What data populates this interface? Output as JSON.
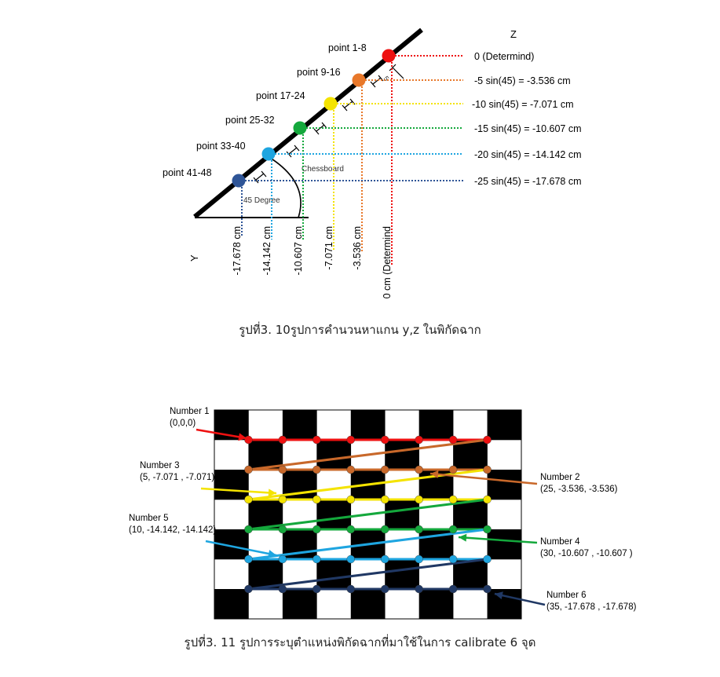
{
  "figure1": {
    "axis_z": "Z",
    "axis_y": "Y",
    "angle_label": "45 Degree",
    "board_label": "Chessboard",
    "tick_label": "5",
    "colors": {
      "red": "#ee1111",
      "orange": "#e8782a",
      "yellow": "#f4e300",
      "green": "#14a83c",
      "cyan": "#1ea5e0",
      "navy": "#2f5597"
    },
    "points": [
      {
        "label": "point 1-8",
        "z": "0 (Determind)",
        "y": "0 cm (Determind",
        "color": "#ee1111"
      },
      {
        "label": "point 9-16",
        "z": "-5 sin(45) = -3.536 cm",
        "y": "-3.536 cm",
        "color": "#e8782a"
      },
      {
        "label": "point 17-24",
        "z": "-10 sin(45) = -7.071 cm",
        "y": "-7.071 cm",
        "color": "#f4e300"
      },
      {
        "label": "point 25-32",
        "z": "-15 sin(45) = -10.607 cm",
        "y": "-10.607 cm",
        "color": "#14a83c"
      },
      {
        "label": "point 33-40",
        "z": "-20 sin(45) = -14.142 cm",
        "y": "-14.142 cm",
        "color": "#1ea5e0"
      },
      {
        "label": "point 41-48",
        "z": "-25 sin(45) = -17.678 cm",
        "y": "-17.678 cm",
        "color": "#2f5597"
      }
    ],
    "caption": "รูปที่3. 10รูปการคำนวนหาแกน y,z ในพิกัดฉาก"
  },
  "figure2": {
    "colors": {
      "row1": "#ee1111",
      "row2": "#c8682a",
      "row3": "#f4e300",
      "row4": "#14a83c",
      "row5": "#1ea5e0",
      "row6": "#203864"
    },
    "labels": [
      {
        "name": "Number 1",
        "coords": "(0,0,0)"
      },
      {
        "name": "Number 2",
        "coords": "(25, -3.536, -3.536)"
      },
      {
        "name": "Number 3",
        "coords": "(5, -7.071 , -7.071)"
      },
      {
        "name": "Number 4",
        "coords": "(30, -10.607  , -10.607 )"
      },
      {
        "name": "Number 5",
        "coords": "(10, -14.142, -14.142)"
      },
      {
        "name": "Number 6",
        "coords": "(35, -17.678 , -17.678)"
      }
    ],
    "caption": "รูปที่3. 11 รูปการระบุตำแหน่งพิกัดฉากที่มาใช้ในการ calibrate 6 จุด"
  }
}
